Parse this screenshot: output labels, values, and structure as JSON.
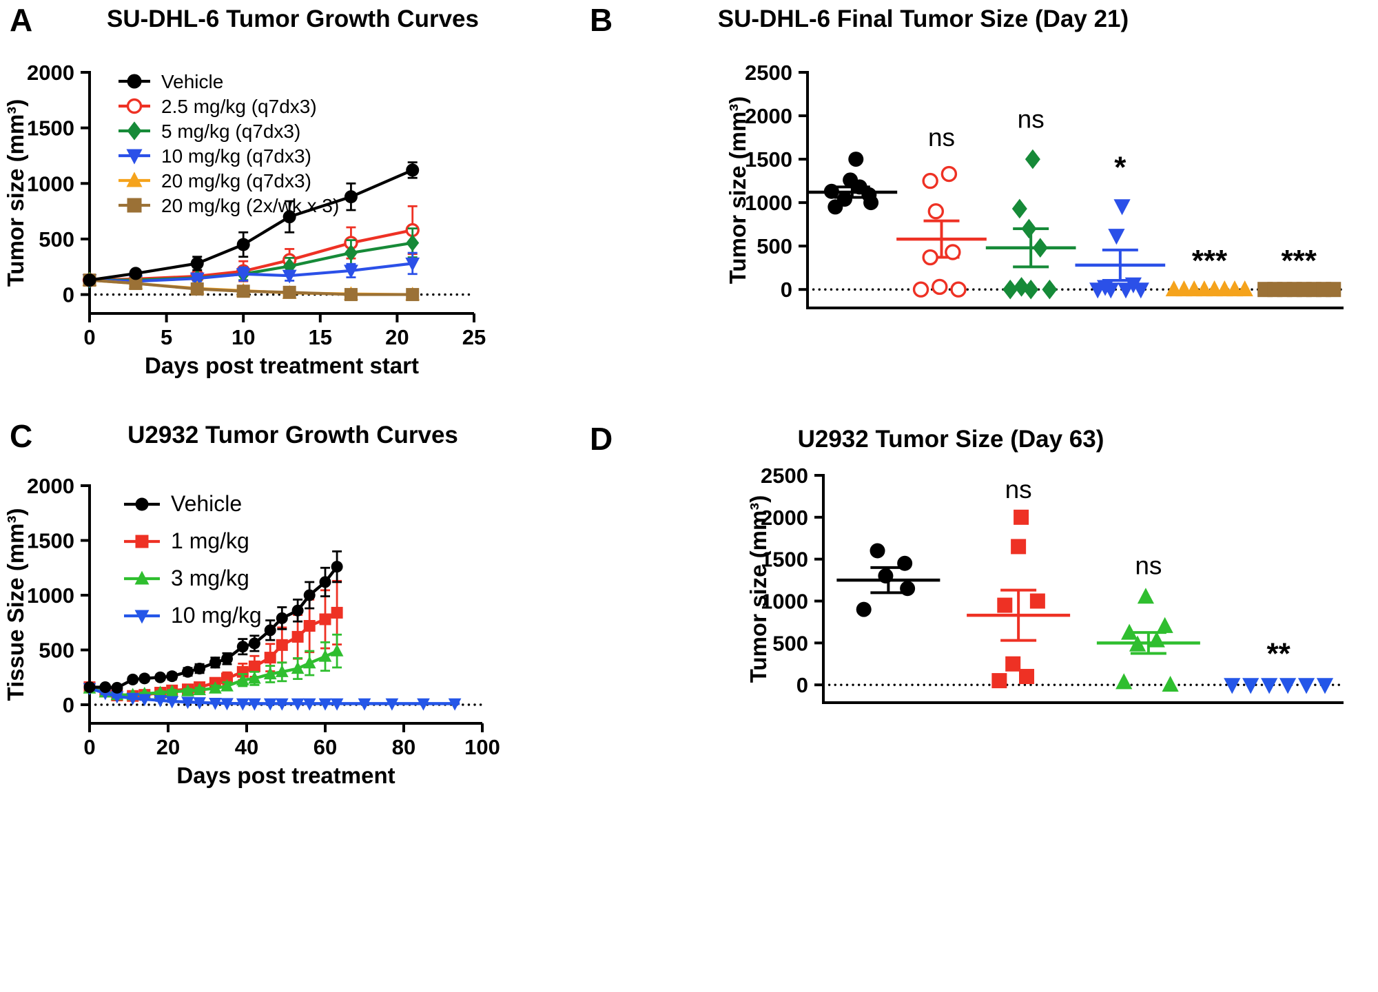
{
  "panels": [
    {
      "letter": "A"
    },
    {
      "letter": "B"
    },
    {
      "letter": "C"
    },
    {
      "letter": "D"
    }
  ],
  "colors": {
    "vehicle_black": "#000000",
    "red": "#EE3124",
    "dark_green": "#168A38",
    "bright_green": "#2FBE2F",
    "blue": "#2B50E8",
    "orange": "#F5A31C",
    "brown": "#9B7136"
  },
  "chart_data": [
    {
      "type": "line",
      "title": "SU-DHL-6 Tumor Growth Curves",
      "xlabel": "Days post treatment start",
      "ylabel": "Tumor size (mm³)",
      "xlim": [
        0,
        25
      ],
      "ylim": [
        0,
        2000
      ],
      "xticks": [
        0,
        5,
        10,
        15,
        20,
        25
      ],
      "yticks": [
        0,
        500,
        1000,
        1500,
        2000
      ],
      "zero_line": true,
      "legend_position": "top-left-inside",
      "x": [
        0,
        3,
        7,
        10,
        13,
        17,
        21
      ],
      "series": [
        {
          "name": "Vehicle",
          "color": "#000000",
          "marker": "circle",
          "values": [
            130,
            190,
            280,
            450,
            700,
            880,
            1120
          ],
          "errors": [
            15,
            30,
            60,
            110,
            140,
            120,
            70
          ]
        },
        {
          "name": "2.5 mg/kg (q7dx3)",
          "color": "#EE3124",
          "marker": "circle-open",
          "values": [
            130,
            140,
            165,
            210,
            310,
            465,
            580
          ],
          "errors": [
            10,
            15,
            30,
            90,
            100,
            140,
            215
          ]
        },
        {
          "name": "5 mg/kg (q7dx3)",
          "color": "#168A38",
          "marker": "diamond",
          "values": [
            130,
            130,
            150,
            185,
            255,
            375,
            465
          ],
          "errors": [
            10,
            10,
            25,
            55,
            75,
            115,
            130
          ]
        },
        {
          "name": "10 mg/kg (q7dx3)",
          "color": "#2B50E8",
          "marker": "triangle-down",
          "values": [
            130,
            120,
            145,
            185,
            170,
            215,
            280
          ],
          "errors": [
            10,
            10,
            25,
            60,
            45,
            60,
            95
          ]
        },
        {
          "name": "20 mg/kg (q7dx3)",
          "color": "#F5A31C",
          "marker": "triangle-up",
          "values": [
            130,
            100,
            55,
            35,
            15,
            5,
            0
          ],
          "errors": [
            8,
            8,
            8,
            8,
            5,
            5,
            5
          ]
        },
        {
          "name": "20 mg/kg (2x/wk x 3)",
          "color": "#9B7136",
          "marker": "square",
          "values": [
            130,
            100,
            50,
            30,
            20,
            0,
            0
          ],
          "errors": [
            8,
            8,
            8,
            8,
            8,
            5,
            5
          ]
        }
      ]
    },
    {
      "type": "scatter",
      "title": "SU-DHL-6 Final Tumor Size (Day 21)",
      "ylabel": "Tumor size (mm³)",
      "ylim": [
        0,
        2500
      ],
      "yticks": [
        0,
        500,
        1000,
        1500,
        2000,
        2500
      ],
      "zero_line": true,
      "groups": [
        {
          "name": "Vehicle",
          "color": "#000000",
          "marker": "circle",
          "points": [
            950,
            1000,
            1040,
            1090,
            1130,
            1180,
            1260,
            1500
          ],
          "offsets": [
            -0.45,
            0.5,
            -0.2,
            0.45,
            -0.55,
            0.2,
            -0.05,
            0.1
          ],
          "mean": 1120,
          "sem": 60,
          "sig": ""
        },
        {
          "name": "2.5 mg/kg (q7dx3)",
          "color": "#EE3124",
          "marker": "circle-open",
          "points": [
            0,
            0,
            30,
            370,
            430,
            900,
            1250,
            1330
          ],
          "offsets": [
            -0.55,
            0.45,
            -0.05,
            -0.3,
            0.3,
            -0.15,
            -0.3,
            0.2
          ],
          "mean": 580,
          "sem": 210,
          "sig": "ns",
          "sig_y": 1650
        },
        {
          "name": "5 mg/kg (q7dx3)",
          "color": "#168A38",
          "marker": "diamond",
          "points": [
            0,
            0,
            0,
            30,
            480,
            700,
            930,
            1500
          ],
          "offsets": [
            -0.55,
            0.0,
            0.5,
            -0.25,
            0.25,
            -0.05,
            -0.3,
            0.05
          ],
          "mean": 480,
          "sem": 220,
          "sig": "ns",
          "sig_y": 1860
        },
        {
          "name": "10 mg/kg (q7dx3)",
          "color": "#2B50E8",
          "marker": "triangle-down",
          "points": [
            0,
            0,
            0,
            0,
            30,
            60,
            620,
            960
          ],
          "offsets": [
            -0.6,
            -0.25,
            0.15,
            0.55,
            -0.4,
            0.35,
            -0.1,
            0.05
          ],
          "mean": 280,
          "sem": 175,
          "sig": "*",
          "sig_y": 1290
        },
        {
          "name": "20 mg/kg (q7dx3)",
          "color": "#F5A31C",
          "marker": "triangle-up",
          "points": [
            0,
            0,
            0,
            0,
            0,
            0,
            0,
            0
          ],
          "offsets": [
            -0.95,
            -0.68,
            -0.41,
            -0.14,
            0.13,
            0.4,
            0.67,
            0.94
          ],
          "mean": null,
          "sem": 0,
          "sig": "***",
          "sig_y": 215
        },
        {
          "name": "20 mg/kg (2x/wk x 3)",
          "color": "#9B7136",
          "marker": "square",
          "points": [
            0,
            0,
            0,
            0,
            0,
            0,
            0,
            0
          ],
          "offsets": [
            -0.9,
            -0.64,
            -0.38,
            -0.12,
            0.14,
            0.4,
            0.66,
            0.92
          ],
          "mean": null,
          "sem": 0,
          "sig": "***",
          "sig_y": 215
        }
      ]
    },
    {
      "type": "line",
      "title": "U2932 Tumor Growth Curves",
      "xlabel": "Days post treatment",
      "ylabel": "Tissue Size (mm³)",
      "xlim": [
        0,
        100
      ],
      "ylim": [
        0,
        2000
      ],
      "xticks": [
        0,
        20,
        40,
        60,
        80,
        100
      ],
      "yticks": [
        0,
        500,
        1000,
        1500,
        2000
      ],
      "zero_line": true,
      "legend_position": "top-left-inside",
      "x": [
        0,
        4,
        7,
        11,
        14,
        18,
        21,
        25,
        28,
        32,
        35,
        39,
        42,
        46,
        49,
        53,
        56,
        60,
        63
      ],
      "series": [
        {
          "name": "Vehicle",
          "color": "#000000",
          "marker": "circle",
          "values": [
            160,
            160,
            155,
            230,
            240,
            250,
            260,
            300,
            330,
            385,
            420,
            530,
            560,
            680,
            790,
            860,
            1000,
            1120,
            1260
          ],
          "errors": [
            15,
            15,
            15,
            25,
            25,
            25,
            30,
            35,
            40,
            45,
            50,
            70,
            70,
            90,
            100,
            100,
            120,
            130,
            140
          ]
        },
        {
          "name": "1 mg/kg",
          "color": "#EE3124",
          "marker": "square",
          "values": [
            160,
            120,
            85,
            80,
            90,
            110,
            130,
            140,
            160,
            200,
            240,
            300,
            350,
            430,
            545,
            620,
            720,
            780,
            840
          ],
          "errors": [
            10,
            10,
            10,
            10,
            10,
            15,
            20,
            25,
            30,
            40,
            55,
            75,
            95,
            125,
            160,
            200,
            240,
            265,
            290
          ]
        },
        {
          "name": "3 mg/kg",
          "color": "#2FBE2F",
          "marker": "triangle-up",
          "values": [
            150,
            115,
            90,
            90,
            100,
            110,
            120,
            125,
            135,
            150,
            170,
            225,
            240,
            280,
            300,
            330,
            380,
            440,
            490
          ],
          "errors": [
            10,
            10,
            10,
            10,
            10,
            12,
            15,
            18,
            20,
            25,
            35,
            55,
            60,
            75,
            85,
            95,
            110,
            130,
            150
          ]
        },
        {
          "name": "10 mg/kg",
          "color": "#2456E8",
          "marker": "triangle-down",
          "x": [
            0,
            4,
            7,
            11,
            14,
            18,
            21,
            25,
            28,
            32,
            35,
            39,
            42,
            46,
            49,
            53,
            56,
            60,
            63,
            70,
            77,
            85,
            93
          ],
          "values": [
            150,
            105,
            75,
            60,
            50,
            40,
            30,
            25,
            20,
            15,
            12,
            10,
            10,
            10,
            10,
            10,
            10,
            10,
            10,
            10,
            10,
            10,
            10
          ],
          "errors": [
            8,
            8,
            8,
            6,
            6,
            5,
            5,
            5,
            5,
            4,
            4,
            4,
            4,
            4,
            4,
            4,
            4,
            4,
            4,
            4,
            4,
            4,
            4
          ]
        }
      ]
    },
    {
      "type": "scatter",
      "title": "U2932 Tumor Size (Day 63)",
      "ylabel": "Tumor size (mm³)",
      "ylim": [
        0,
        2500
      ],
      "yticks": [
        0,
        500,
        1000,
        1500,
        2000,
        2500
      ],
      "zero_line": true,
      "groups": [
        {
          "name": "Vehicle",
          "color": "#000000",
          "marker": "circle",
          "points": [
            900,
            1150,
            1300,
            1450,
            1600
          ],
          "offsets": [
            -0.45,
            0.35,
            -0.05,
            0.3,
            -0.2
          ],
          "mean": 1250,
          "sem": 150,
          "sig": ""
        },
        {
          "name": "1 mg/kg",
          "color": "#EE3124",
          "marker": "square",
          "points": [
            2000,
            1650,
            1000,
            950,
            250,
            100,
            50
          ],
          "offsets": [
            0.05,
            0.0,
            0.35,
            -0.25,
            -0.1,
            0.15,
            -0.35
          ],
          "mean": 830,
          "sem": 300,
          "sig": "ns",
          "sig_y": 2230
        },
        {
          "name": "3 mg/kg",
          "color": "#2FBE2F",
          "marker": "triangle-up",
          "points": [
            1050,
            700,
            620,
            530,
            480,
            30,
            0
          ],
          "offsets": [
            -0.05,
            0.3,
            -0.35,
            0.15,
            -0.2,
            -0.45,
            0.4
          ],
          "mean": 500,
          "sem": 125,
          "sig": "ns",
          "sig_y": 1320
        },
        {
          "name": "10 mg/kg",
          "color": "#2456E8",
          "marker": "triangle-down",
          "points": [
            0,
            0,
            0,
            0,
            0,
            0
          ],
          "offsets": [
            -0.85,
            -0.51,
            -0.17,
            0.17,
            0.51,
            0.85
          ],
          "mean": null,
          "sem": 0,
          "sig": "**",
          "sig_y": 250
        }
      ]
    }
  ]
}
